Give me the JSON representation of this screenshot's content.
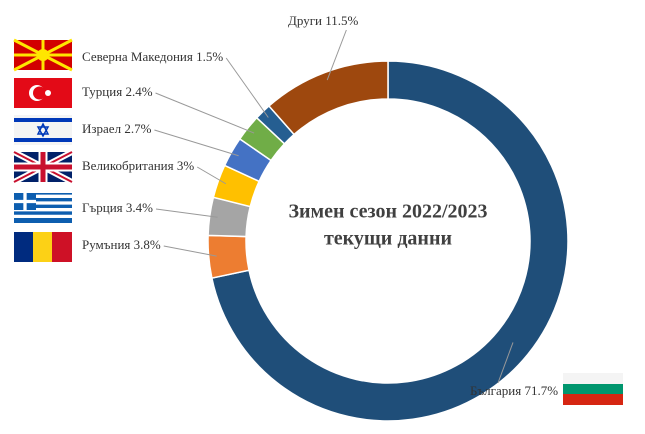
{
  "chart_data": {
    "type": "donut",
    "title": "Зимен сезон 2022/2023",
    "subtitle": "текущи данни",
    "categories": [
      "България",
      "Румъния",
      "Гърция",
      "Великобритания",
      "Израел",
      "Турция",
      "Северна Македония",
      "Други"
    ],
    "values": [
      71.7,
      3.8,
      3.4,
      3,
      2.7,
      2.4,
      1.5,
      11.5
    ],
    "value_labels": [
      "71.7%",
      "3.8%",
      "3.4%",
      "3%",
      "2.7%",
      "2.4%",
      "1.5%",
      "11.5%"
    ],
    "colors": [
      "#1f4e79",
      "#ed7d31",
      "#a5a5a5",
      "#ffc000",
      "#4472c4",
      "#70ad47",
      "#255e91",
      "#9e480e"
    ]
  }
}
